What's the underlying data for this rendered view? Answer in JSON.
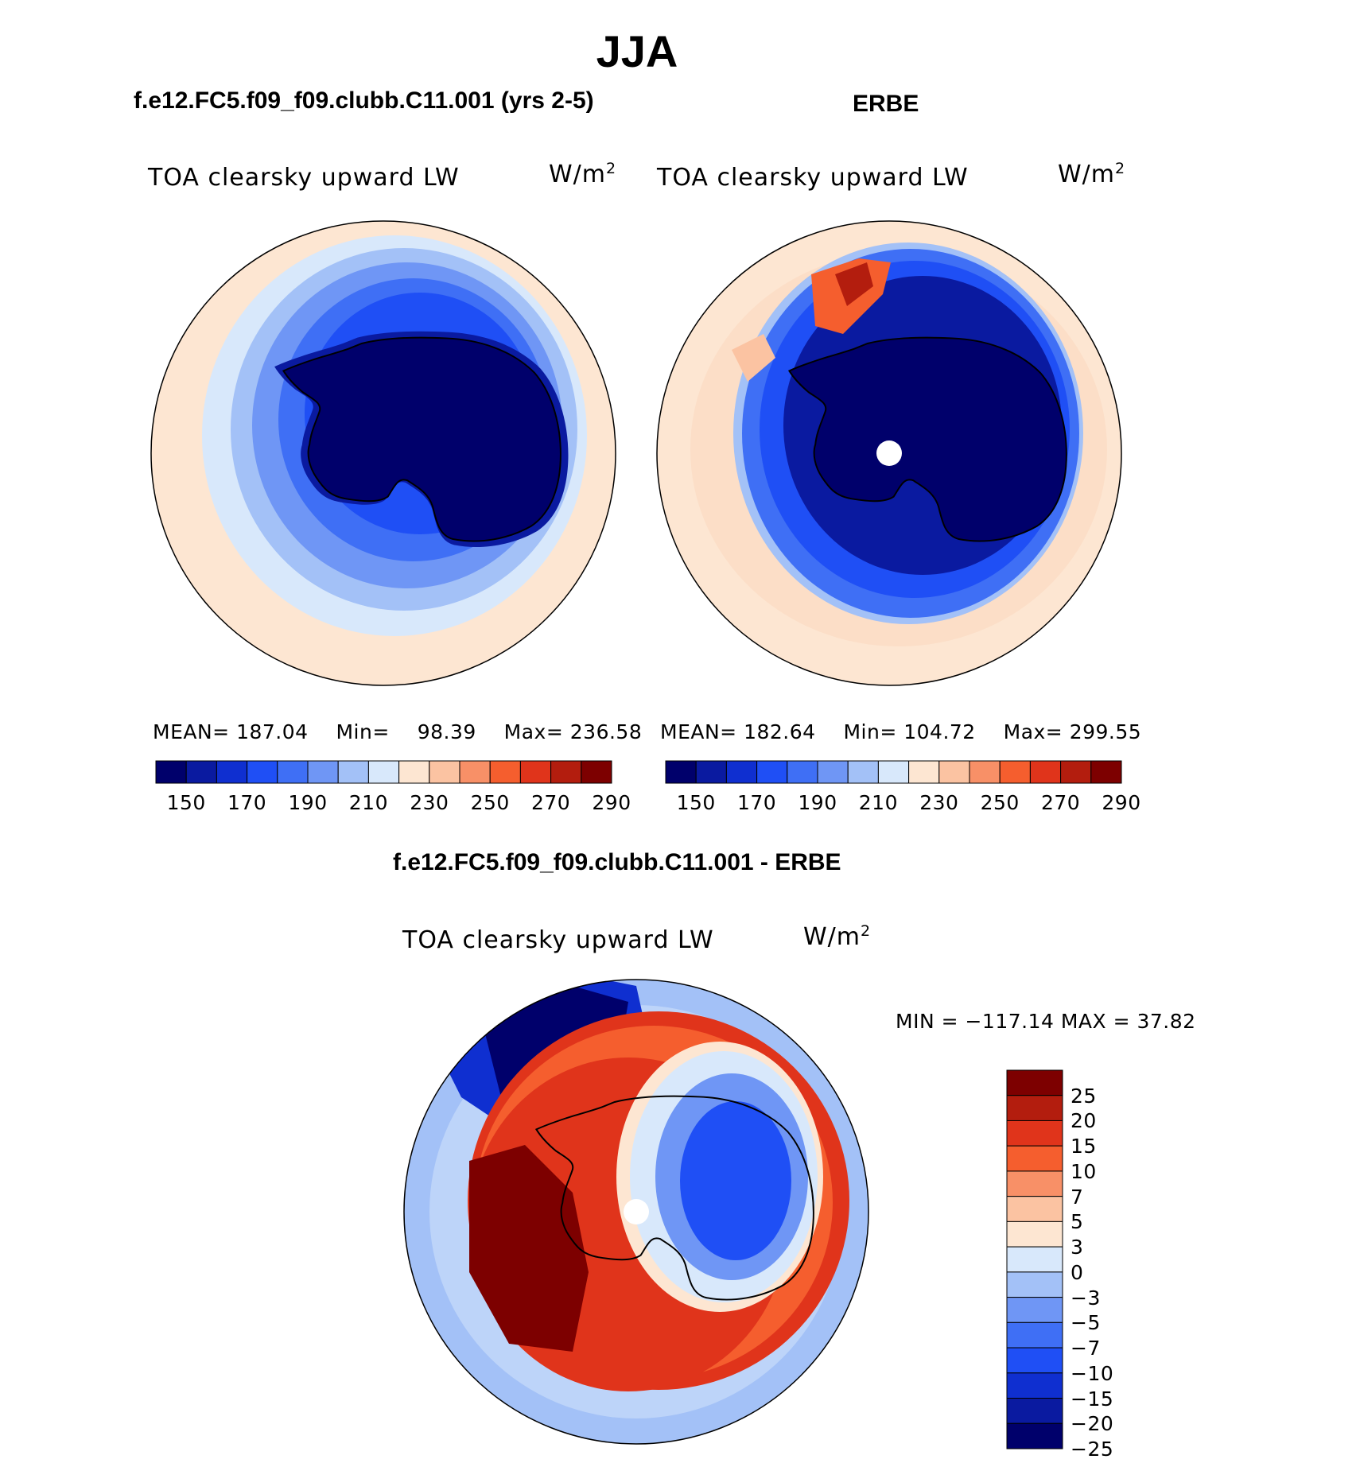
{
  "title": "JJA",
  "panels": {
    "model": {
      "title": "f.e12.FC5.f09_f09.clubb.C11.001 (yrs 2-5)",
      "variable": "TOA clearsky upward LW",
      "units_base": "W/m",
      "units_exp": "2",
      "stats": {
        "mean_label": "MEAN=",
        "mean": "187.04",
        "min_label": "Min=",
        "min": "98.39",
        "max_label": "Max=",
        "max": "236.58"
      }
    },
    "obs": {
      "title": "ERBE",
      "variable": "TOA clearsky upward LW",
      "units_base": "W/m",
      "units_exp": "2",
      "stats": {
        "mean_label": "MEAN=",
        "mean": "182.64",
        "min_label": "Min=",
        "min": "104.72",
        "max_label": "Max=",
        "max": "299.55"
      }
    },
    "diff": {
      "title": "f.e12.FC5.f09_f09.clubb.C11.001 - ERBE",
      "variable": "TOA clearsky upward LW",
      "units_base": "W/m",
      "units_exp": "2",
      "minmax": "MIN = −117.14 MAX =   37.82"
    }
  },
  "colorbar_abs": {
    "tick_labels": [
      "150",
      "170",
      "190",
      "210",
      "230",
      "250",
      "270",
      "290"
    ],
    "colors": [
      "#00006b",
      "#0a1aa0",
      "#0f2fd0",
      "#1f4ff5",
      "#3f6ff5",
      "#6f96f5",
      "#a3c1f7",
      "#d8e8fb",
      "#fde6d2",
      "#fbc3a2",
      "#f89067",
      "#f55e2e",
      "#e0341b",
      "#b31d0e",
      "#7d0000"
    ]
  },
  "colorbar_diff": {
    "tick_labels": [
      "25",
      "20",
      "15",
      "10",
      "7",
      "5",
      "3",
      "0",
      "−3",
      "−5",
      "−7",
      "−10",
      "−15",
      "−20",
      "−25"
    ],
    "colors": [
      "#7d0000",
      "#b31d0e",
      "#e0341b",
      "#f55e2e",
      "#f89067",
      "#fbc3a2",
      "#fde6d2",
      "#d8e8fb",
      "#a3c1f7",
      "#6f96f5",
      "#3f6ff5",
      "#1f4ff5",
      "#0f2fd0",
      "#0a1aa0",
      "#00006b"
    ]
  },
  "palette": {
    "land_outline": "#000000",
    "background": "#ffffff"
  }
}
